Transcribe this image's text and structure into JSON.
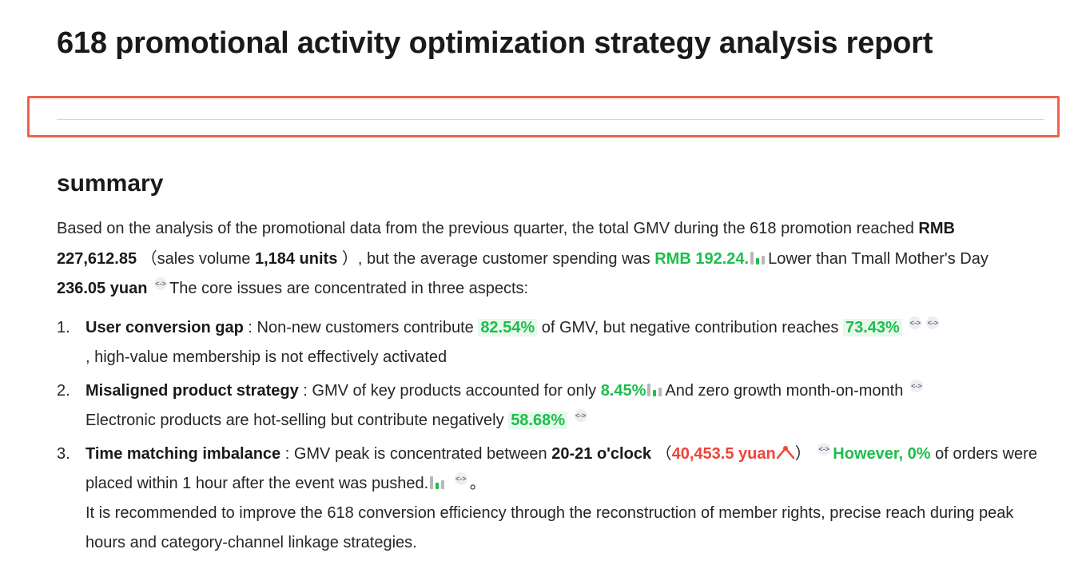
{
  "report": {
    "title": "618 promotional activity optimization strategy analysis report"
  },
  "summary": {
    "heading": "summary",
    "intro": {
      "t1": "Based on the analysis of the promotional data from the previous quarter, the total GMV during the 618 promotion reached ",
      "gmv": "RMB 227,612.85",
      "t2": "（sales volume ",
      "units": "1,184 units",
      "t3": "）, but the average customer spending was ",
      "avg": "RMB 192.24.",
      "t4": "Lower than Tmall Mother's Day ",
      "mothers_day": "236.05 yuan",
      "t5": "The core issues are concentrated in three aspects:"
    },
    "issues": [
      {
        "num": "1.",
        "title": "User conversion gap",
        "t1": " : Non-new customers contribute ",
        "v1": "82.54%",
        "t2": " of GMV, but negative contribution reaches ",
        "v2": "73.43%",
        "t3": ", high-value membership is not effectively activated"
      },
      {
        "num": "2.",
        "title": "Misaligned product strategy",
        "t1": " : GMV of key products accounted for only ",
        "v1": "8.45%",
        "t2": "And zero growth month-on-month",
        "t3": "Electronic products are hot-selling but contribute negatively ",
        "v2": "58.68%"
      },
      {
        "num": "3.",
        "title": "Time matching imbalance",
        "t1": " : GMV peak is concentrated between ",
        "v1": "20-21 o'clock",
        "t2": "（",
        "v2": "40,453.5 yuan",
        "t3": "）",
        "v3": "However, 0%",
        "t4": " of orders were placed within 1 hour after the event was pushed.",
        "t5": "。",
        "t6": "It is recommended to improve the 618 conversion efficiency through the reconstruction of member rights, precise reach during peak hours and category-channel linkage strategies."
      }
    ],
    "cite_glyph": "<->"
  },
  "colors": {
    "accent_green": "#1dbe4c",
    "accent_red": "#f0433a",
    "highlight_border": "#f0624f"
  }
}
